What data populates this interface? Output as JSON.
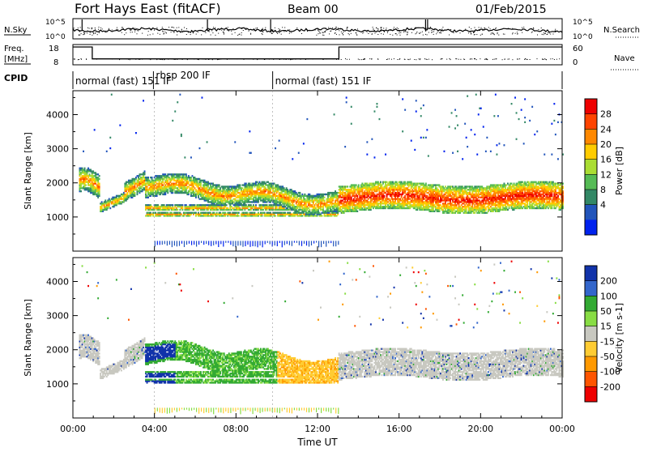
{
  "header": {
    "radar": "Fort Hays East (fitACF)",
    "beam": "Beam 00",
    "date": "01/Feb/2015"
  },
  "noise_panel": {
    "left_label": "N.Sky",
    "right_label": "N.Search",
    "left_ticks": [
      "10^5",
      "10^0"
    ],
    "right_ticks": [
      "10^5",
      "10^0"
    ]
  },
  "freq_panel": {
    "left_label_1": "Freq.",
    "left_label_2": "[MHz]",
    "right_label": "Nave",
    "left_ticks": [
      "18",
      "8"
    ],
    "right_ticks": [
      "60",
      "0"
    ],
    "freq_segments": [
      {
        "start_hour": 0.0,
        "end_hour": 0.95,
        "mhz": 18
      },
      {
        "start_hour": 0.95,
        "end_hour": 13.05,
        "mhz": 10
      },
      {
        "start_hour": 13.05,
        "end_hour": 24.0,
        "mhz": 18
      }
    ]
  },
  "cpid_panel": {
    "label": "CPID",
    "segments": [
      {
        "text": "normal (fast) 151 IF",
        "start_hour": 0.0
      },
      {
        "text": "rbsp 200 IF",
        "start_hour": 3.95
      },
      {
        "text": "normal (fast) 151 IF",
        "start_hour": 9.8
      }
    ]
  },
  "chart_data": [
    {
      "type": "heatmap",
      "name": "Power",
      "x_label": "",
      "ylabel": "Slant Range [km]",
      "xlim": [
        0,
        24
      ],
      "ylim": [
        0,
        4700
      ],
      "yticks": [
        "1000",
        "2000",
        "3000",
        "4000"
      ],
      "ytick_values": [
        1000,
        2000,
        3000,
        4000
      ],
      "colorbar": {
        "label": "Power [dB]",
        "ticks": [
          "28",
          "24",
          "20",
          "16",
          "12",
          "8",
          "4"
        ],
        "colors": [
          "#0022ee",
          "#2255bb",
          "#338866",
          "#55bb55",
          "#aadd33",
          "#ffcc00",
          "#ff8800",
          "#ff4400",
          "#ee0000"
        ]
      }
    },
    {
      "type": "heatmap",
      "name": "Velocity",
      "xlabel": "Time UT",
      "ylabel": "Slant Range [km]",
      "xlim": [
        0,
        24
      ],
      "ylim": [
        0,
        4700
      ],
      "yticks": [
        "1000",
        "2000",
        "3000",
        "4000"
      ],
      "ytick_values": [
        1000,
        2000,
        3000,
        4000
      ],
      "xticks": [
        "00:00",
        "04:00",
        "08:00",
        "12:00",
        "16:00",
        "20:00",
        "00:00"
      ],
      "xtick_values": [
        0,
        4,
        8,
        12,
        16,
        20,
        24
      ],
      "colorbar": {
        "label": "Velocity [m s-1]",
        "ticks": [
          "200",
          "100",
          "50",
          "15",
          "-15",
          "-50",
          "-100",
          "-200"
        ],
        "colors": [
          "#1133aa",
          "#3366cc",
          "#33aa33",
          "#88dd44",
          "#c8c8c0",
          "#ffcc33",
          "#ff9900",
          "#ff5500",
          "#ee0000"
        ]
      }
    }
  ]
}
